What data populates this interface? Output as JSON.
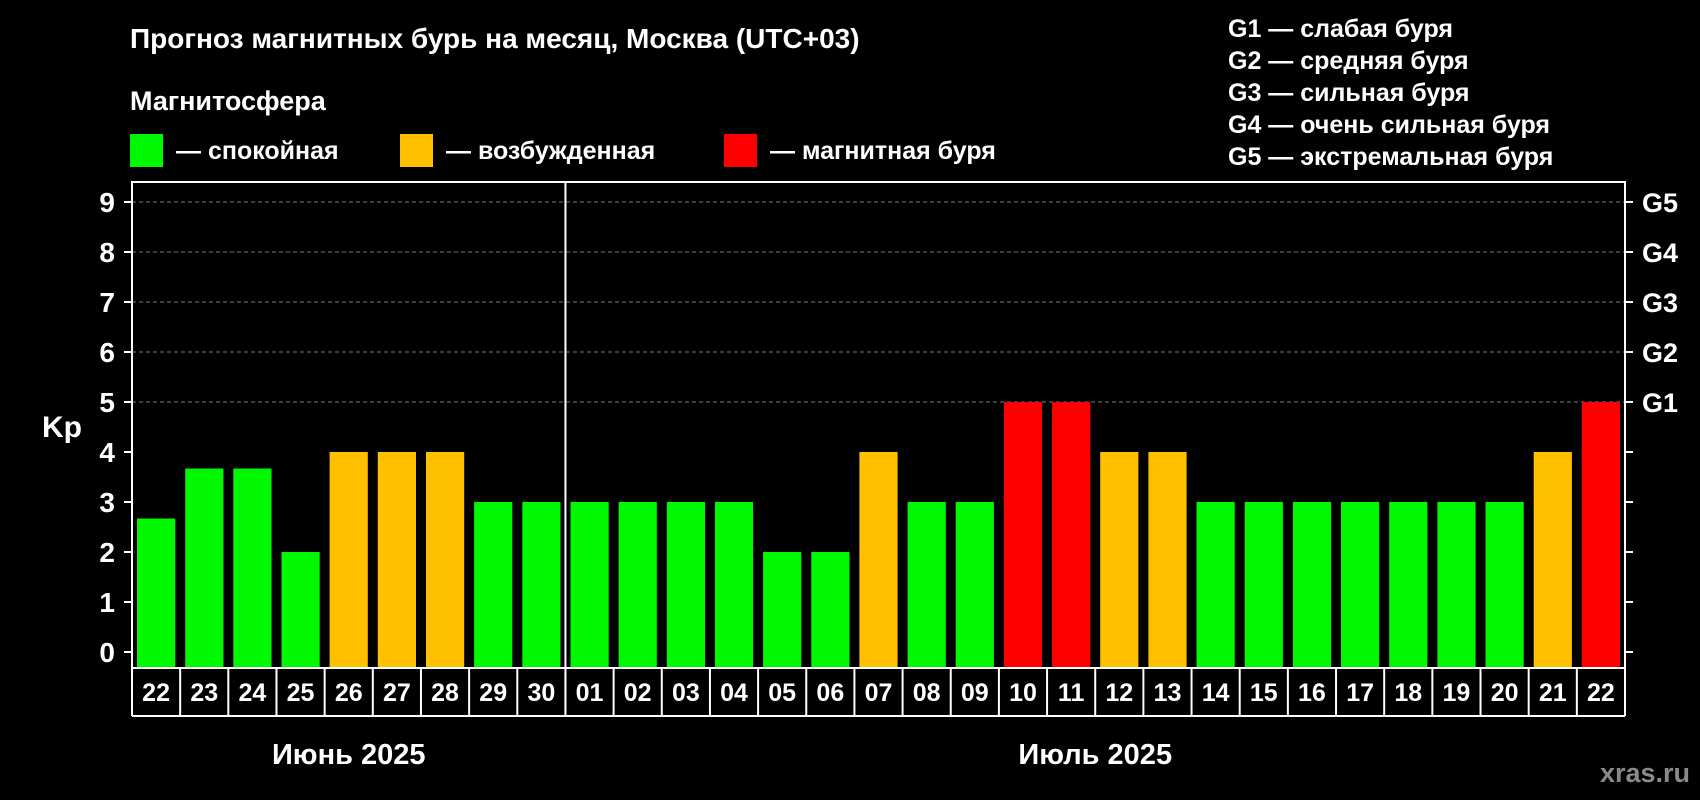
{
  "chart_data": {
    "type": "bar",
    "title": "Прогноз магнитных бурь на месяц, Москва (UTC+03)",
    "subtitle": "Магнитосфера",
    "ylabel": "Kp",
    "ylim": [
      0,
      9
    ],
    "y_ticks": [
      "0",
      "1",
      "2",
      "3",
      "4",
      "5",
      "6",
      "7",
      "8",
      "9"
    ],
    "right_ticks": [
      {
        "value": 5,
        "label": "G1"
      },
      {
        "value": 6,
        "label": "G2"
      },
      {
        "value": 7,
        "label": "G3"
      },
      {
        "value": 8,
        "label": "G4"
      },
      {
        "value": 9,
        "label": "G5"
      }
    ],
    "grid": "horizontal dashed",
    "legend": [
      {
        "label": "— спокойная",
        "color": "#00f800"
      },
      {
        "label": "— возбужденная",
        "color": "#ffc000"
      },
      {
        "label": "— магнитная буря",
        "color": "#ff0000"
      }
    ],
    "g_legend": [
      "G1 — слабая буря",
      "G2 — средняя буря",
      "G3 — сильная буря",
      "G4 — очень сильная буря",
      "G5 — экстремальная буря"
    ],
    "months": [
      {
        "label": "Июнь 2025",
        "start_index": 0,
        "count": 9
      },
      {
        "label": "Июль 2025",
        "start_index": 9,
        "count": 22
      }
    ],
    "categories": [
      "22",
      "23",
      "24",
      "25",
      "26",
      "27",
      "28",
      "29",
      "30",
      "01",
      "02",
      "03",
      "04",
      "05",
      "06",
      "07",
      "08",
      "09",
      "10",
      "11",
      "12",
      "13",
      "14",
      "15",
      "16",
      "17",
      "18",
      "19",
      "20",
      "21",
      "22"
    ],
    "values": [
      2.67,
      3.67,
      3.67,
      2,
      4,
      4,
      4,
      3,
      3,
      3,
      3,
      3,
      3,
      2,
      2,
      4,
      3,
      3,
      5,
      5,
      4,
      4,
      3,
      3,
      3,
      3,
      3,
      3,
      3,
      4,
      5
    ],
    "levels": [
      "calm",
      "calm",
      "calm",
      "calm",
      "excited",
      "excited",
      "excited",
      "calm",
      "calm",
      "calm",
      "calm",
      "calm",
      "calm",
      "calm",
      "calm",
      "excited",
      "calm",
      "calm",
      "storm",
      "storm",
      "excited",
      "excited",
      "calm",
      "calm",
      "calm",
      "calm",
      "calm",
      "calm",
      "calm",
      "excited",
      "storm"
    ],
    "level_colors": {
      "calm": "#00f800",
      "excited": "#ffc000",
      "storm": "#ff0000"
    }
  },
  "watermark": "xras.ru"
}
